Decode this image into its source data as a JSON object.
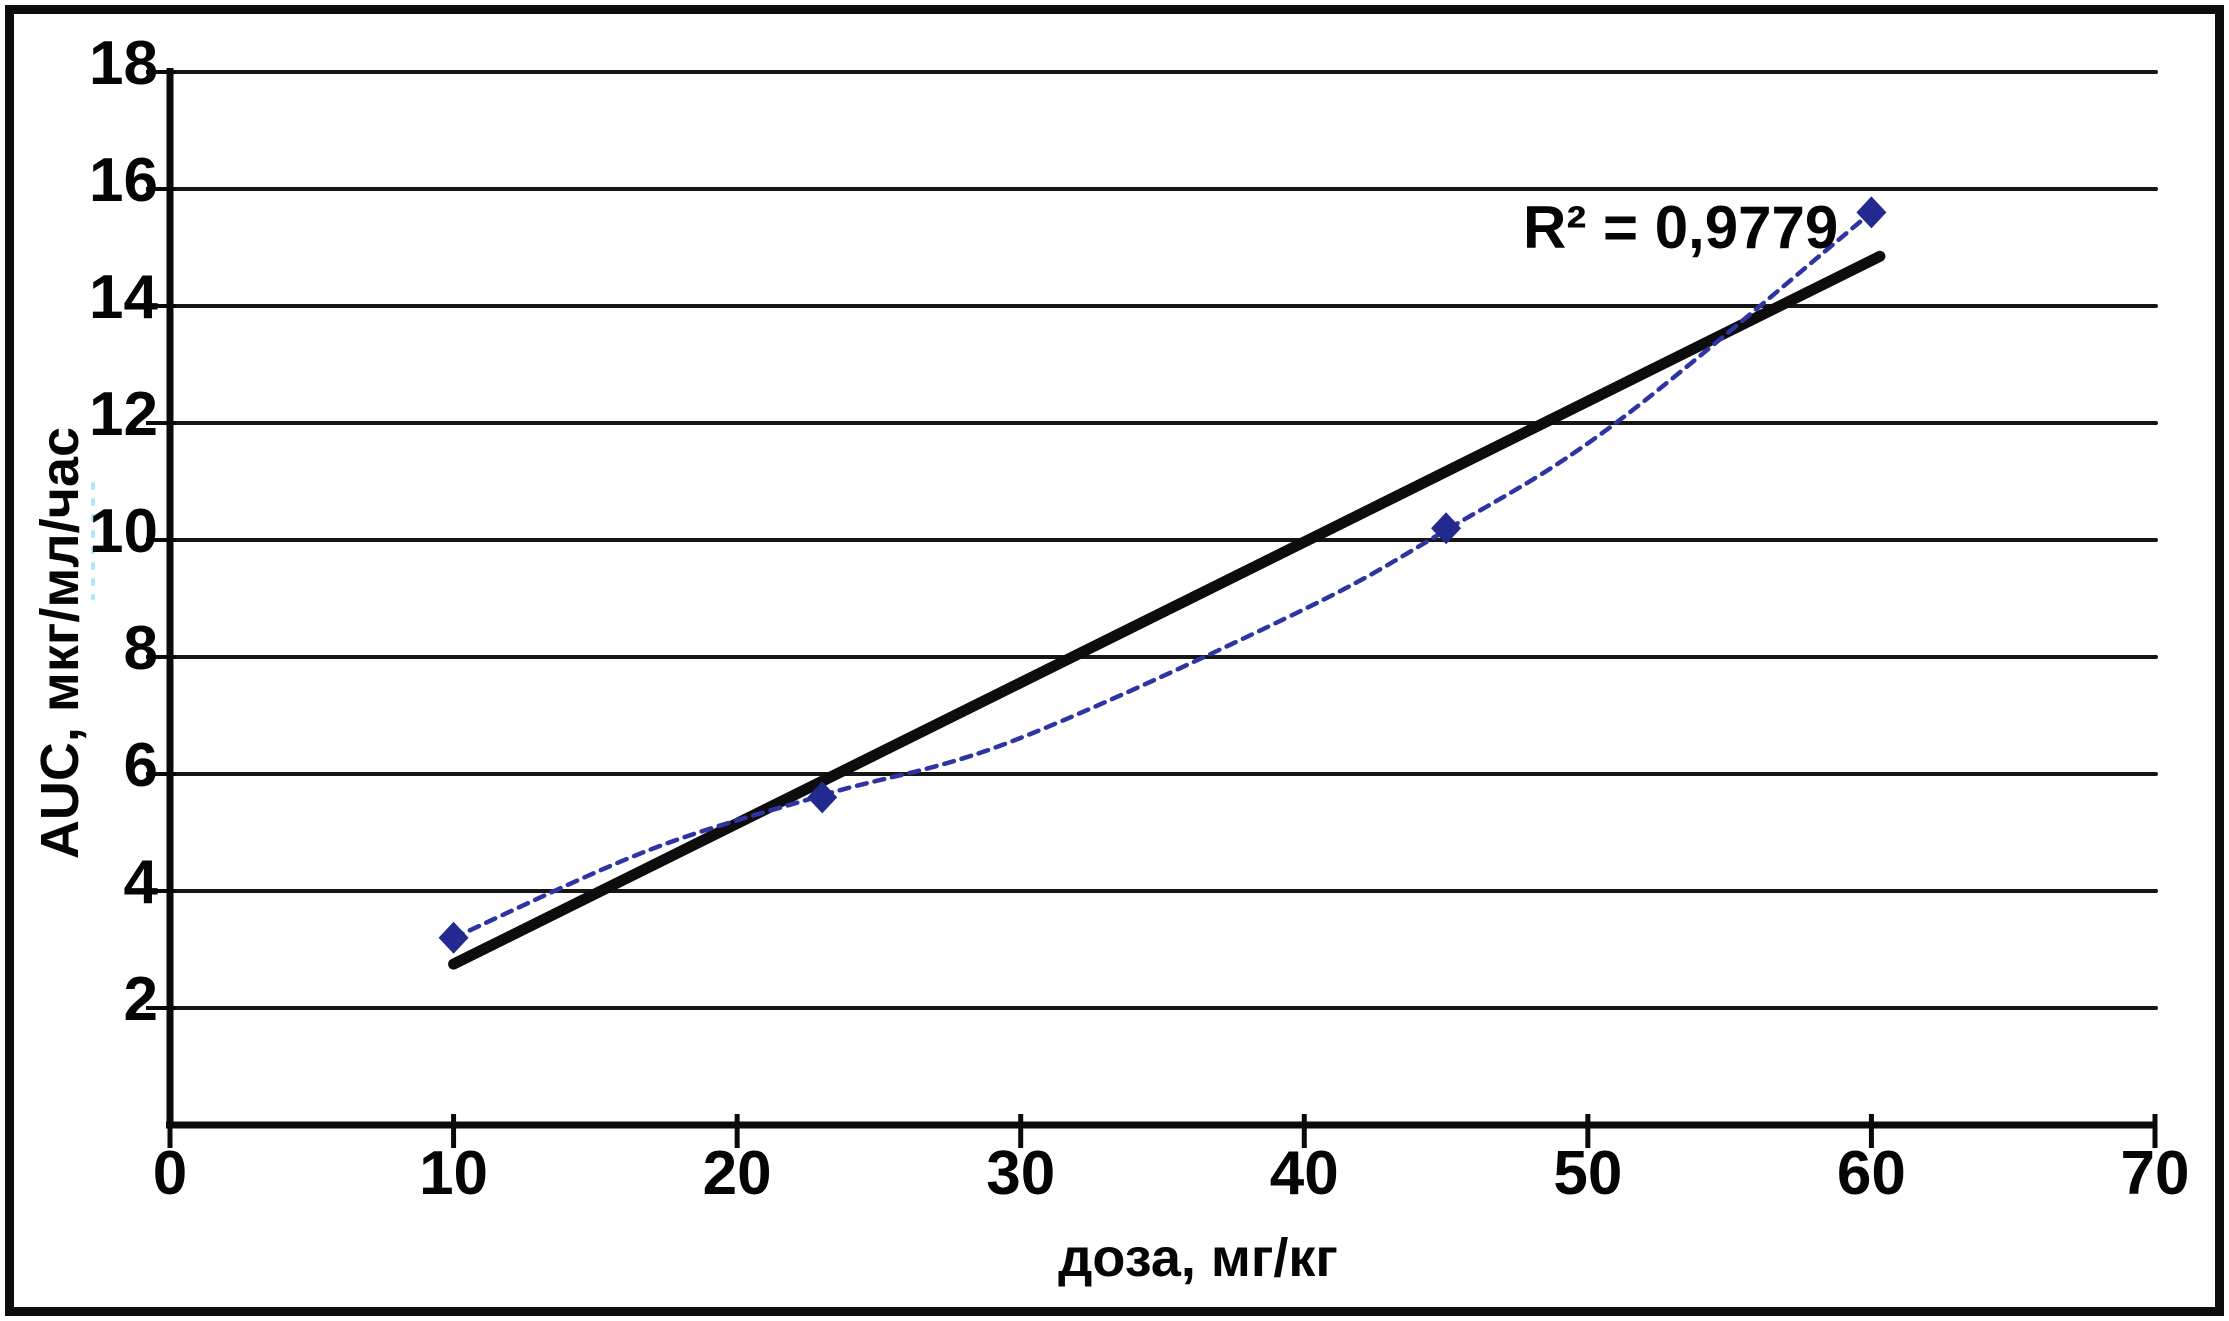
{
  "figure": {
    "background": "#ffffff",
    "border_color": "#0c0c0c"
  },
  "chart_data": {
    "type": "scatter",
    "title": "",
    "xlabel": "доза, мг/кг",
    "ylabel": "AUC, мкг/мл/час",
    "annotation": "R² = 0,9779",
    "xlim": [
      0,
      70
    ],
    "ylim": [
      0,
      18
    ],
    "x_ticks": [
      0,
      10,
      20,
      30,
      40,
      50,
      60,
      70
    ],
    "y_ticks": [
      2,
      4,
      6,
      8,
      10,
      12,
      14,
      16,
      18
    ],
    "grid": "horizontal",
    "legend": "none",
    "colors": {
      "grid": "#161616",
      "axis": "#0a0a0a",
      "text": "#050505",
      "data_line": "#2e35a3",
      "marker": "#232a8f",
      "trendline": "#0d0d0d",
      "scan_artifact": "#a6ebf5"
    },
    "series": [
      {
        "name": "AUC vs dose",
        "role": "data",
        "marker": "diamond",
        "line_style": "dashed",
        "color": "#2e35a3",
        "marker_color": "#232a8f",
        "line_width": 4.5,
        "points": [
          {
            "x": 10,
            "y": 3.2
          },
          {
            "x": 23,
            "y": 5.6
          },
          {
            "x": 45,
            "y": 10.2
          },
          {
            "x": 60,
            "y": 15.6
          }
        ],
        "smooth_samples": [
          [
            10,
            3.2
          ],
          [
            16.9,
            4.7
          ],
          [
            23.1,
            5.65
          ],
          [
            29.7,
            6.56
          ],
          [
            39.8,
            8.77
          ],
          [
            45,
            10.17
          ],
          [
            50.9,
            11.97
          ],
          [
            60,
            15.6
          ]
        ]
      },
      {
        "name": "linear trendline",
        "role": "trendline",
        "marker": "none",
        "line_style": "solid",
        "color": "#0d0d0d",
        "line_width": 11,
        "points": [
          {
            "x": 10,
            "y": 2.75
          },
          {
            "x": 60.3,
            "y": 14.85
          }
        ]
      }
    ]
  }
}
